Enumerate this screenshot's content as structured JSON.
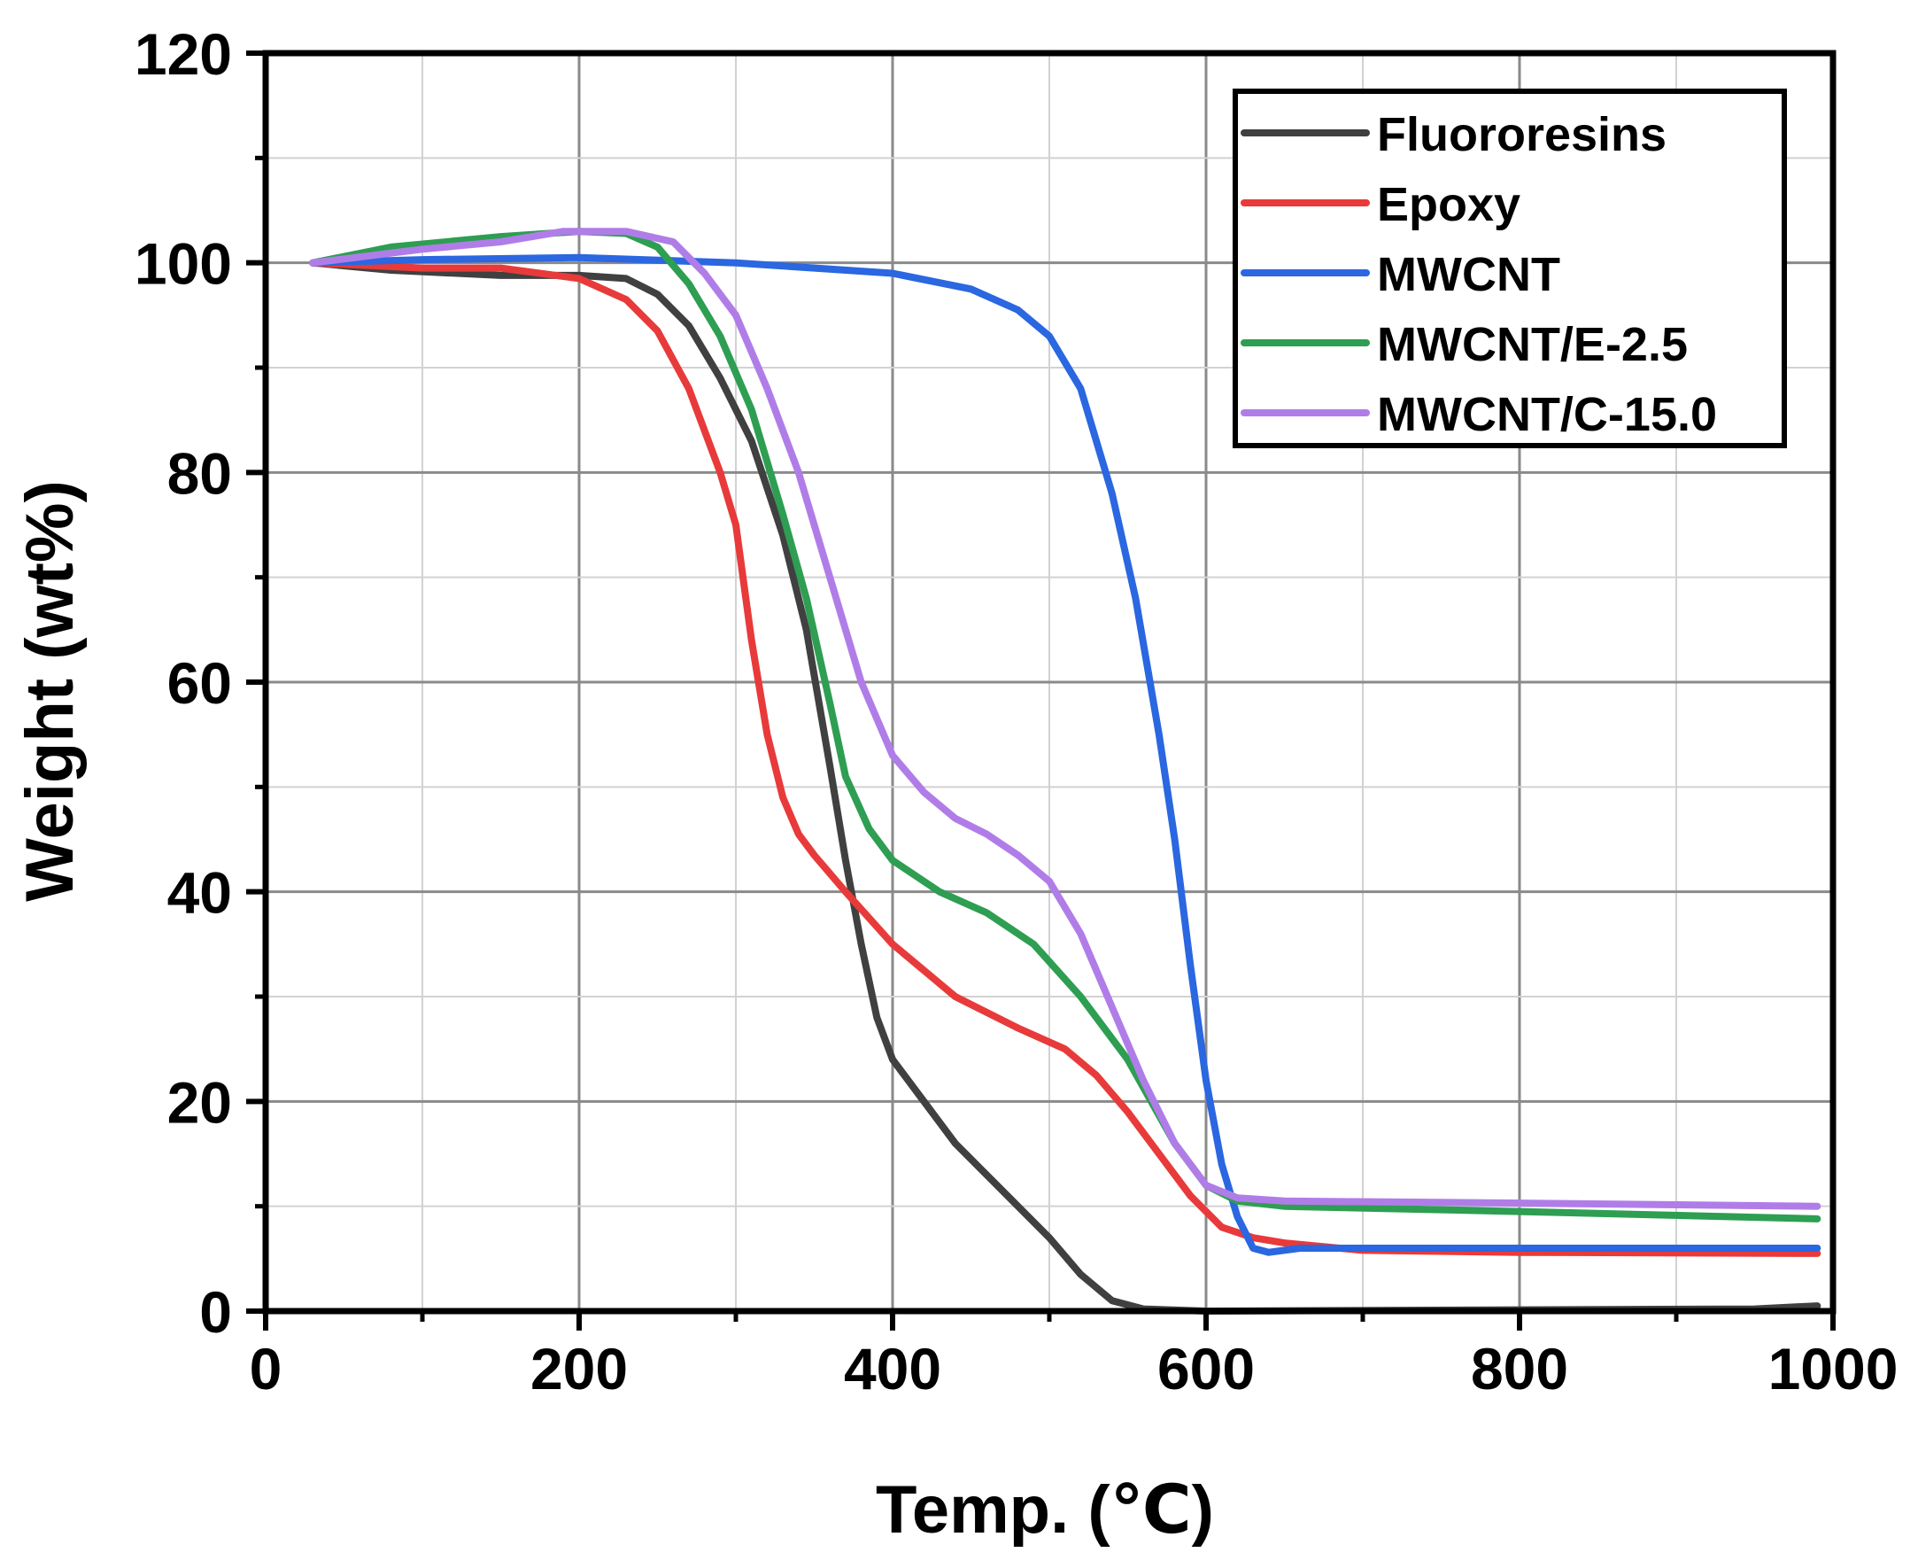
{
  "chart_data": {
    "type": "line",
    "title": "",
    "xlabel": "Temp. (℃)",
    "ylabel": "Weight (wt%)",
    "xlim": [
      0,
      1000
    ],
    "ylim": [
      0,
      120
    ],
    "xticks": [
      0,
      200,
      400,
      600,
      800,
      1000
    ],
    "yticks": [
      0,
      20,
      40,
      60,
      80,
      100,
      120
    ],
    "x_tick_labels": [
      "0",
      "200",
      "400",
      "600",
      "800",
      "1000"
    ],
    "y_tick_labels": [
      "0",
      "20",
      "40",
      "60",
      "80",
      "100",
      "120"
    ],
    "grid": true,
    "legend_position": "top-right",
    "series": [
      {
        "name": "Fluororesins",
        "color": "#404040",
        "points": [
          [
            30,
            100
          ],
          [
            80,
            99.3
          ],
          [
            150,
            98.8
          ],
          [
            200,
            98.8
          ],
          [
            230,
            98.5
          ],
          [
            250,
            97
          ],
          [
            270,
            94
          ],
          [
            290,
            89
          ],
          [
            310,
            83
          ],
          [
            330,
            74
          ],
          [
            345,
            65
          ],
          [
            360,
            52
          ],
          [
            370,
            43
          ],
          [
            380,
            35
          ],
          [
            390,
            28
          ],
          [
            400,
            24
          ],
          [
            420,
            20
          ],
          [
            440,
            16
          ],
          [
            460,
            13
          ],
          [
            480,
            10
          ],
          [
            500,
            7
          ],
          [
            520,
            3.5
          ],
          [
            540,
            1
          ],
          [
            560,
            0.2
          ],
          [
            600,
            0
          ],
          [
            950,
            0.2
          ],
          [
            990,
            0.5
          ]
        ]
      },
      {
        "name": "Epoxy",
        "color": "#e83a3a",
        "points": [
          [
            30,
            100
          ],
          [
            100,
            99.5
          ],
          [
            150,
            99.5
          ],
          [
            200,
            98.5
          ],
          [
            230,
            96.5
          ],
          [
            250,
            93.5
          ],
          [
            270,
            88
          ],
          [
            290,
            80
          ],
          [
            300,
            75
          ],
          [
            310,
            64
          ],
          [
            320,
            55
          ],
          [
            330,
            49
          ],
          [
            340,
            45.5
          ],
          [
            350,
            43.5
          ],
          [
            370,
            40
          ],
          [
            400,
            35
          ],
          [
            440,
            30
          ],
          [
            480,
            27
          ],
          [
            510,
            25
          ],
          [
            530,
            22.5
          ],
          [
            550,
            19
          ],
          [
            570,
            15
          ],
          [
            590,
            11
          ],
          [
            610,
            8
          ],
          [
            630,
            7
          ],
          [
            650,
            6.5
          ],
          [
            700,
            5.8
          ],
          [
            800,
            5.6
          ],
          [
            990,
            5.5
          ]
        ]
      },
      {
        "name": "MWCNT",
        "color": "#2a67e0",
        "points": [
          [
            30,
            100
          ],
          [
            100,
            100.3
          ],
          [
            200,
            100.5
          ],
          [
            300,
            100
          ],
          [
            400,
            99
          ],
          [
            450,
            97.5
          ],
          [
            480,
            95.5
          ],
          [
            500,
            93
          ],
          [
            520,
            88
          ],
          [
            540,
            78
          ],
          [
            555,
            68
          ],
          [
            570,
            55
          ],
          [
            580,
            45
          ],
          [
            590,
            33
          ],
          [
            600,
            22
          ],
          [
            610,
            14
          ],
          [
            620,
            9
          ],
          [
            630,
            6
          ],
          [
            640,
            5.6
          ],
          [
            660,
            6
          ],
          [
            700,
            6
          ],
          [
            800,
            6
          ],
          [
            990,
            6
          ]
        ]
      },
      {
        "name": "MWCNT/E-2.5",
        "color": "#2e9e52",
        "points": [
          [
            30,
            100
          ],
          [
            80,
            101.5
          ],
          [
            150,
            102.5
          ],
          [
            200,
            103
          ],
          [
            230,
            102.8
          ],
          [
            250,
            101.5
          ],
          [
            270,
            98
          ],
          [
            290,
            93
          ],
          [
            310,
            86
          ],
          [
            330,
            76
          ],
          [
            345,
            68
          ],
          [
            360,
            58
          ],
          [
            370,
            51
          ],
          [
            385,
            46
          ],
          [
            400,
            43
          ],
          [
            430,
            40
          ],
          [
            460,
            38
          ],
          [
            490,
            35
          ],
          [
            520,
            30
          ],
          [
            550,
            24
          ],
          [
            580,
            16
          ],
          [
            600,
            12
          ],
          [
            620,
            10.5
          ],
          [
            650,
            10
          ],
          [
            800,
            9.5
          ],
          [
            990,
            8.8
          ]
        ]
      },
      {
        "name": "MWCNT/C-15.0",
        "color": "#b07de8",
        "points": [
          [
            30,
            100
          ],
          [
            100,
            101.3
          ],
          [
            150,
            102
          ],
          [
            190,
            103
          ],
          [
            230,
            103
          ],
          [
            260,
            102
          ],
          [
            280,
            99
          ],
          [
            300,
            95
          ],
          [
            320,
            88
          ],
          [
            340,
            80
          ],
          [
            360,
            70
          ],
          [
            380,
            60
          ],
          [
            400,
            53
          ],
          [
            420,
            49.5
          ],
          [
            440,
            47
          ],
          [
            460,
            45.5
          ],
          [
            480,
            43.5
          ],
          [
            500,
            41
          ],
          [
            520,
            36
          ],
          [
            540,
            29
          ],
          [
            560,
            22
          ],
          [
            580,
            16
          ],
          [
            600,
            12
          ],
          [
            620,
            10.8
          ],
          [
            650,
            10.5
          ],
          [
            800,
            10.3
          ],
          [
            990,
            10
          ]
        ]
      }
    ]
  }
}
